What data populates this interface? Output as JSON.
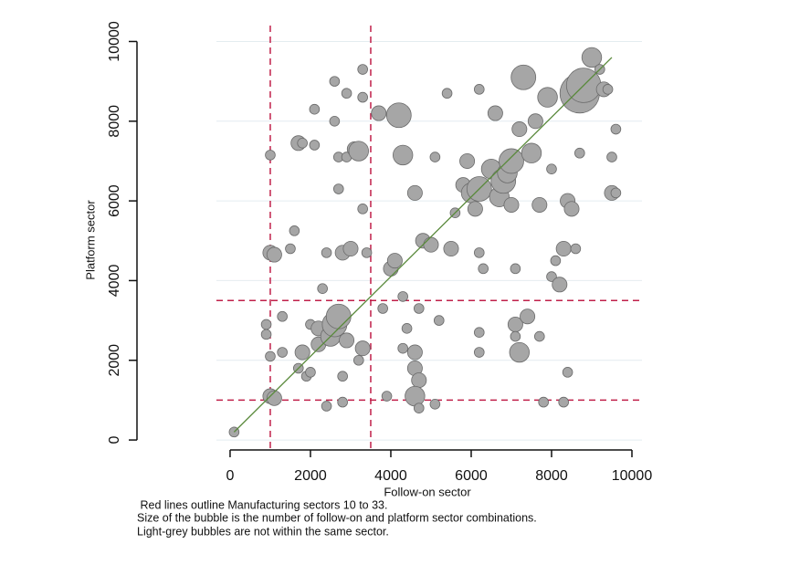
{
  "chart_data": {
    "type": "scatter",
    "x_label": "Follow-on sector",
    "y_label": "Platform sector",
    "notes": [
      " Red lines outline Manufacturing sectors 10 to 33.",
      "Size of the bubble is the number of follow-on and platform sector combinations.",
      "Light-grey bubbles are not within the same sector."
    ],
    "xlim": [
      -340,
      10250
    ],
    "ylim": [
      -250,
      10400
    ],
    "xticks": [
      0,
      2000,
      4000,
      6000,
      8000,
      10000
    ],
    "yticks": [
      0,
      2000,
      4000,
      6000,
      8000,
      10000
    ],
    "grid": true,
    "color": "#a6a6a6",
    "edge_color": "#6b6b6b",
    "ref_color": "#c0204a",
    "vlines": [
      1000,
      3500
    ],
    "hlines": [
      1000,
      3500
    ],
    "fit_color": "#5a8a3c",
    "fit_x": [
      100,
      9500
    ],
    "fit_y": [
      200,
      9600
    ],
    "x": [
      100,
      1000,
      1100,
      1000,
      1100,
      1000,
      1000,
      900,
      900,
      1300,
      1300,
      1500,
      1600,
      1700,
      1800,
      1700,
      1800,
      1900,
      2000,
      2000,
      2100,
      2100,
      2200,
      2200,
      2300,
      2400,
      2500,
      2600,
      2700,
      2600,
      2600,
      2700,
      2700,
      2800,
      2900,
      2900,
      2900,
      3000,
      3100,
      3200,
      3300,
      3300,
      3300,
      3400,
      3300,
      3200,
      2800,
      2800,
      2400,
      3700,
      3800,
      3900,
      4000,
      4100,
      4200,
      4300,
      4300,
      4300,
      4400,
      4600,
      4600,
      4700,
      4600,
      4700,
      4700,
      4600,
      4800,
      5000,
      5100,
      5200,
      5100,
      5500,
      5400,
      5600,
      5800,
      5900,
      6000,
      6100,
      6200,
      6200,
      6200,
      6300,
      6200,
      6200,
      6500,
      6600,
      6700,
      6800,
      6900,
      7000,
      7000,
      7100,
      7100,
      7200,
      7100,
      7200,
      7300,
      7400,
      7500,
      7600,
      7700,
      7700,
      7800,
      7900,
      8000,
      8000,
      8100,
      8200,
      8300,
      8300,
      8400,
      8400,
      8500,
      8700,
      8800,
      8600,
      8700,
      9000,
      9300,
      9400,
      9500,
      9500,
      9600,
      9600,
      9200
    ],
    "values": [
      200,
      1100,
      1050,
      4700,
      4650,
      7150,
      2100,
      2900,
      2650,
      2200,
      3100,
      4800,
      5250,
      7450,
      7450,
      1800,
      2200,
      1600,
      2900,
      1700,
      8300,
      7400,
      2800,
      2400,
      3800,
      4700,
      2600,
      2900,
      3100,
      9000,
      8000,
      6300,
      7100,
      4700,
      2500,
      7100,
      8700,
      4800,
      7300,
      7250,
      9300,
      8600,
      5800,
      4700,
      2300,
      2000,
      1600,
      950,
      850,
      8200,
      3300,
      1100,
      4300,
      4500,
      8150,
      7150,
      3600,
      2300,
      2800,
      2200,
      1800,
      1500,
      1100,
      800,
      3300,
      6200,
      5000,
      4900,
      7100,
      3000,
      900,
      4800,
      8700,
      5700,
      6400,
      7000,
      6200,
      5800,
      6300,
      8800,
      4700,
      4300,
      2700,
      2200,
      6800,
      8200,
      6100,
      6500,
      6700,
      7000,
      5900,
      4300,
      2900,
      2200,
      2600,
      7800,
      9100,
      3100,
      7200,
      8000,
      5900,
      2600,
      950,
      8600,
      4100,
      6800,
      4500,
      3900,
      4800,
      950,
      1700,
      6000,
      5800,
      8700,
      8900,
      4800,
      7200,
      9600,
      8800,
      8800,
      7100,
      6200,
      7800,
      6200,
      9300
    ],
    "sizes": [
      2,
      3,
      3,
      3,
      3,
      2,
      2,
      2,
      2,
      2,
      2,
      2,
      2,
      3,
      2,
      2,
      3,
      2,
      2,
      2,
      2,
      2,
      3,
      3,
      2,
      2,
      4,
      5,
      5,
      2,
      2,
      2,
      2,
      3,
      3,
      2,
      2,
      3,
      3,
      4,
      2,
      2,
      2,
      2,
      3,
      2,
      2,
      2,
      2,
      3,
      2,
      2,
      3,
      3,
      5,
      4,
      2,
      2,
      2,
      3,
      3,
      3,
      4,
      2,
      2,
      3,
      3,
      3,
      2,
      2,
      2,
      3,
      2,
      2,
      3,
      3,
      4,
      3,
      5,
      2,
      2,
      2,
      2,
      2,
      4,
      3,
      4,
      5,
      4,
      5,
      3,
      2,
      3,
      4,
      2,
      3,
      5,
      3,
      4,
      3,
      3,
      2,
      2,
      4,
      2,
      2,
      2,
      3,
      3,
      2,
      2,
      3,
      3,
      8,
      7,
      2,
      2,
      4,
      3,
      2,
      2,
      3,
      2,
      2,
      2
    ]
  }
}
